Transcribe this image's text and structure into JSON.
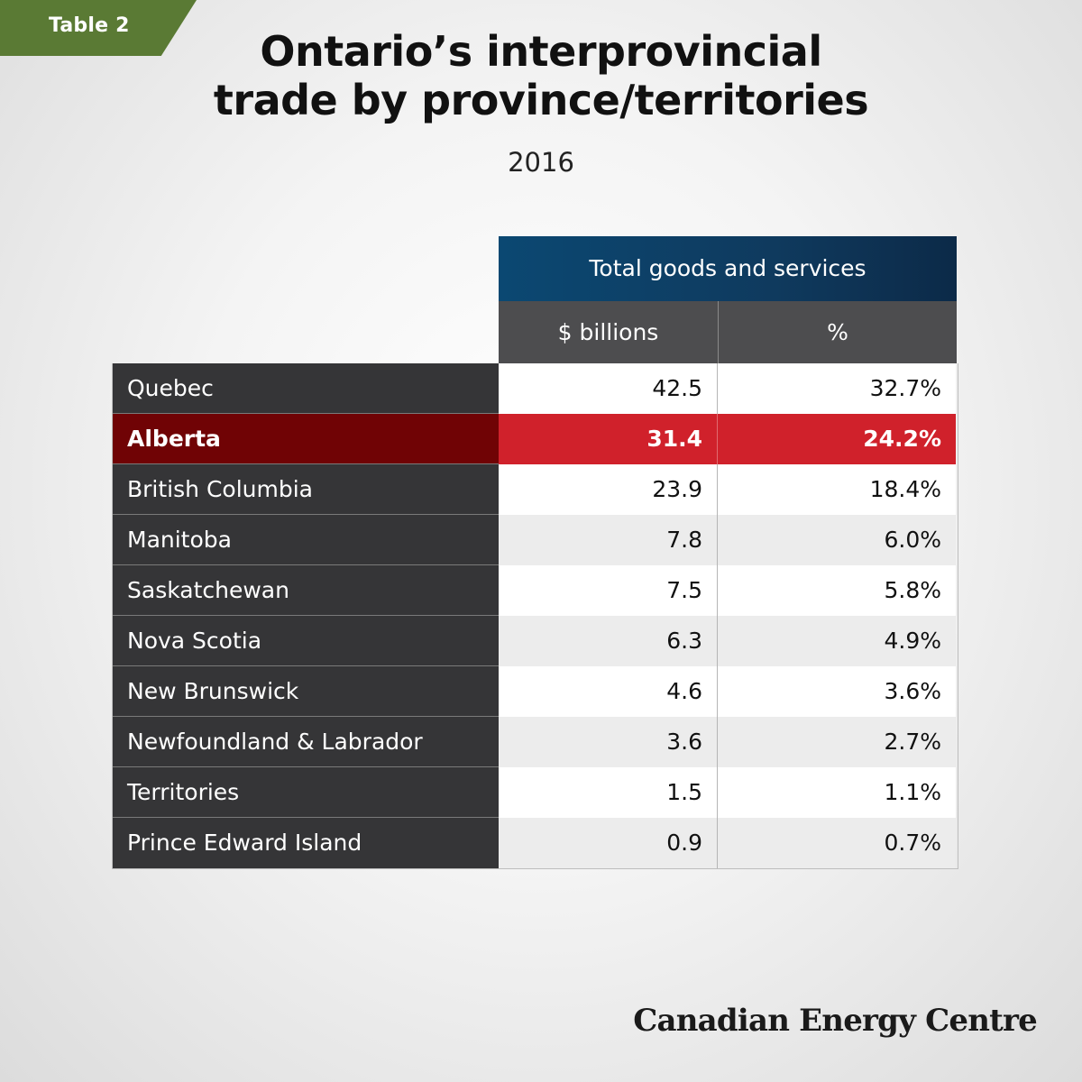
{
  "tag": {
    "label": "Table 2"
  },
  "title_line1": "Ontario’s interprovincial",
  "title_line2": "trade by province/territories",
  "subtitle": "2016",
  "brand": "Canadian Energy Centre",
  "colors": {
    "tag": "#5a7a34",
    "group_header": "#0f3a5e",
    "col_header": "#4d4d4f",
    "row_label": "#353537",
    "highlight_label": "#700305",
    "highlight_value": "#d0212b"
  },
  "chart_data": {
    "type": "table",
    "title": "Ontario’s interprovincial trade by province/territories",
    "subtitle": "2016",
    "group_header": "Total goods and services",
    "columns": [
      "$ billions",
      "%"
    ],
    "highlight_row": "Alberta",
    "rows": [
      {
        "name": "Quebec",
        "billions": "42.5",
        "percent": "32.7%"
      },
      {
        "name": "Alberta",
        "billions": "31.4",
        "percent": "24.2%"
      },
      {
        "name": "British Columbia",
        "billions": "23.9",
        "percent": "18.4%"
      },
      {
        "name": "Manitoba",
        "billions": "7.8",
        "percent": "6.0%"
      },
      {
        "name": "Saskatchewan",
        "billions": "7.5",
        "percent": "5.8%"
      },
      {
        "name": "Nova Scotia",
        "billions": "6.3",
        "percent": "4.9%"
      },
      {
        "name": "New Brunswick",
        "billions": "4.6",
        "percent": "3.6%"
      },
      {
        "name": "Newfoundland & Labrador",
        "billions": "3.6",
        "percent": "2.7%"
      },
      {
        "name": "Territories",
        "billions": "1.5",
        "percent": "1.1%"
      },
      {
        "name": "Prince Edward Island",
        "billions": "0.9",
        "percent": "0.7%"
      }
    ]
  }
}
